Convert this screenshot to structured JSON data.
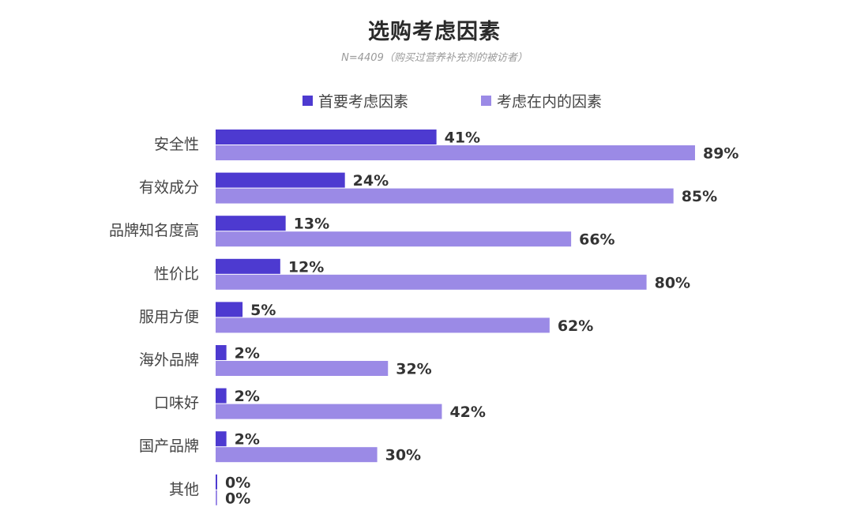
{
  "chart_data": {
    "type": "bar",
    "orientation": "horizontal",
    "title": "选购考虑因素",
    "subtitle": "N=4409（购买过营养补充剂的被访者）",
    "categories": [
      "安全性",
      "有效成分",
      "品牌知名度高",
      "性价比",
      "服用方便",
      "海外品牌",
      "口味好",
      "国产品牌",
      "其他"
    ],
    "series": [
      {
        "name": "首要考虑因素",
        "values": [
          41,
          24,
          13,
          12,
          5,
          2,
          2,
          2,
          0
        ],
        "labels": [
          "41%",
          "24%",
          "13%",
          "12%",
          "5%",
          "2%",
          "2%",
          "2%",
          "0%"
        ],
        "color": "#4d3ad0"
      },
      {
        "name": "考虑在内的因素",
        "values": [
          89,
          85,
          66,
          80,
          62,
          32,
          42,
          30,
          0
        ],
        "labels": [
          "89%",
          "85%",
          "66%",
          "80%",
          "62%",
          "32%",
          "42%",
          "30%",
          "0%"
        ],
        "color": "#9b8ae6"
      }
    ],
    "unit": "%",
    "legend_position": "top",
    "grid": false
  }
}
